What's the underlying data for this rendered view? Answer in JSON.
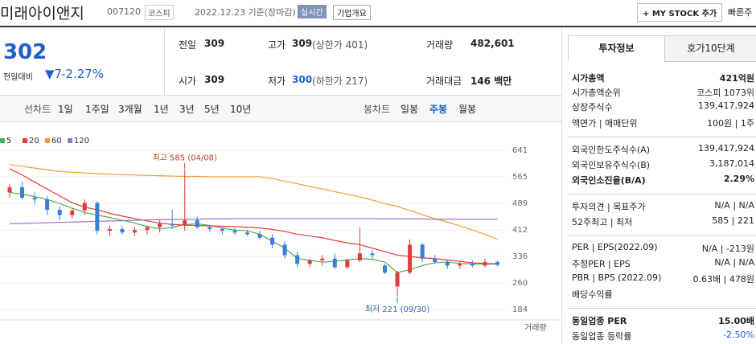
{
  "header": {
    "name": "미래아이앤지",
    "code": "007120",
    "market": "코스피",
    "date": "2022.12.23 기준(장마감)",
    "realtime": "실시간",
    "overview": "기업개요",
    "mystock": "+ MY STOCK 추가",
    "quick": "빠른주"
  },
  "quote": {
    "price": "302",
    "change_label": "전일대비",
    "change": "▼7",
    "rate": "-2.27%",
    "cells": [
      {
        "label": "전일",
        "value": "309"
      },
      {
        "label": "고가",
        "value": "309",
        "note": "(상한가 401)"
      },
      {
        "label": "거래량",
        "value": "482,601"
      },
      {
        "label": "시가",
        "value": "309"
      },
      {
        "label": "저가",
        "value": "300",
        "note": "(하한가 217)"
      },
      {
        "label": "거래대금",
        "value": "146 백만"
      }
    ]
  },
  "tabs": {
    "line_label": "선차트",
    "line": [
      "1일",
      "1주일",
      "3개월",
      "1년",
      "3년",
      "5년",
      "10년"
    ],
    "candle_label": "봉차트",
    "candle": [
      "일봉",
      "주봉",
      "월봉"
    ]
  },
  "chart_data": {
    "type": "candlestick",
    "ylim": [
      184,
      641
    ],
    "yticks": [
      641,
      565,
      489,
      412,
      336,
      260,
      184
    ],
    "annotations": [
      "최고 585 (04/08)",
      "최저 221 (09/30)"
    ],
    "volume_label": "거래량",
    "up_color": "#e03c3c",
    "down_color": "#3b7fd6",
    "candles": [
      [
        520,
        545,
        505,
        535
      ],
      [
        535,
        550,
        500,
        505
      ],
      [
        505,
        520,
        485,
        500
      ],
      [
        500,
        510,
        455,
        470
      ],
      [
        470,
        480,
        440,
        455
      ],
      [
        455,
        475,
        445,
        468
      ],
      [
        468,
        500,
        455,
        490
      ],
      [
        490,
        495,
        400,
        410
      ],
      [
        410,
        425,
        395,
        415
      ],
      [
        415,
        425,
        400,
        405
      ],
      [
        405,
        420,
        395,
        412
      ],
      [
        412,
        425,
        400,
        420
      ],
      [
        420,
        440,
        405,
        430
      ],
      [
        430,
        470,
        415,
        425
      ],
      [
        425,
        585,
        410,
        440
      ],
      [
        440,
        450,
        415,
        420
      ],
      [
        420,
        425,
        408,
        415
      ],
      [
        415,
        420,
        400,
        410
      ],
      [
        410,
        418,
        398,
        405
      ],
      [
        405,
        412,
        395,
        400
      ],
      [
        400,
        410,
        385,
        390
      ],
      [
        390,
        400,
        360,
        370
      ],
      [
        370,
        380,
        330,
        340
      ],
      [
        340,
        350,
        305,
        315
      ],
      [
        315,
        330,
        305,
        325
      ],
      [
        325,
        340,
        310,
        330
      ],
      [
        330,
        345,
        300,
        305
      ],
      [
        305,
        330,
        300,
        325
      ],
      [
        325,
        420,
        320,
        345
      ],
      [
        345,
        355,
        330,
        340
      ],
      [
        310,
        315,
        285,
        290
      ],
      [
        250,
        295,
        221,
        290
      ],
      [
        290,
        385,
        285,
        370
      ],
      [
        370,
        375,
        320,
        330
      ],
      [
        330,
        340,
        315,
        320
      ],
      [
        320,
        325,
        300,
        310
      ],
      [
        310,
        320,
        300,
        315
      ],
      [
        315,
        325,
        305,
        310
      ],
      [
        310,
        330,
        305,
        320
      ],
      [
        320,
        325,
        308,
        312
      ]
    ],
    "series": [
      {
        "name": "5",
        "color": "#4caf50",
        "values": [
          520,
          515,
          508,
          500,
          488,
          475,
          462,
          455,
          448,
          440,
          432,
          422,
          415,
          420,
          428,
          430,
          425,
          418,
          412,
          410,
          400,
          380,
          360,
          330,
          325,
          320,
          322,
          326,
          330,
          328,
          320,
          290,
          298,
          310,
          318,
          320,
          316,
          315,
          314,
          315
        ]
      },
      {
        "name": "20",
        "color": "#e53935",
        "values": [
          588,
          570,
          550,
          530,
          510,
          490,
          478,
          470,
          460,
          452,
          445,
          438,
          432,
          428,
          426,
          425,
          424,
          423,
          422,
          420,
          418,
          414,
          408,
          400,
          395,
          390,
          382,
          375,
          370,
          360,
          350,
          340,
          336,
          332,
          330,
          326,
          322,
          318,
          316,
          315
        ]
      },
      {
        "name": "60",
        "color": "#f39c34",
        "values": [
          600,
          595,
          590,
          585,
          580,
          578,
          576,
          574,
          572,
          571,
          570,
          569,
          568,
          567,
          566,
          566,
          565,
          565,
          565,
          565,
          565,
          560,
          552,
          545,
          537,
          530,
          522,
          515,
          507,
          498,
          488,
          480,
          468,
          456,
          445,
          435,
          424,
          412,
          400,
          385
        ]
      },
      {
        "name": "120",
        "color": "#9c6fd1",
        "values": [
          430,
          431,
          432,
          433,
          434,
          435,
          436,
          437,
          438,
          439,
          440,
          441,
          442,
          442,
          443,
          443,
          444,
          444,
          445,
          445,
          445,
          445,
          445,
          445,
          445,
          445,
          445,
          445,
          445,
          445,
          444,
          444,
          444,
          444,
          443,
          443,
          443,
          443,
          443,
          443
        ]
      }
    ]
  },
  "sidebar": {
    "tabs": [
      "투자정보",
      "호가10단계"
    ],
    "rows": [
      {
        "label": "시가총액",
        "value": "421억원"
      },
      {
        "label": "시가총액순위",
        "value": "코스피 1073위"
      },
      {
        "label": "상장주식수",
        "value": "139,417,924"
      },
      {
        "label": "액면가 | 매매단위",
        "value": "100원 | 1주"
      },
      {
        "label": "외국인한도주식수(A)",
        "value": "139,417,924"
      },
      {
        "label": "외국인보유주식수(B)",
        "value": "3,187,014"
      },
      {
        "label": "외국인소진율(B/A)",
        "value": "2.29%"
      },
      {
        "label": "투자의견 | 목표주가",
        "value": "N/A | N/A"
      },
      {
        "label": "52주최고 | 최저",
        "value": "585 | 221"
      },
      {
        "label": "PER | EPS(2022.09)",
        "value": "N/A | -213원"
      },
      {
        "label": "추정PER | EPS",
        "value": "N/A | N/A"
      },
      {
        "label": "PBR | BPS (2022.09)",
        "value": "0.63배 | 478원"
      },
      {
        "label": "배당수익률",
        "value": ""
      },
      {
        "label": "동일업종 PER",
        "value": "15.00배"
      },
      {
        "label": "동일업종 등락률",
        "value": "-2.50%"
      }
    ]
  }
}
